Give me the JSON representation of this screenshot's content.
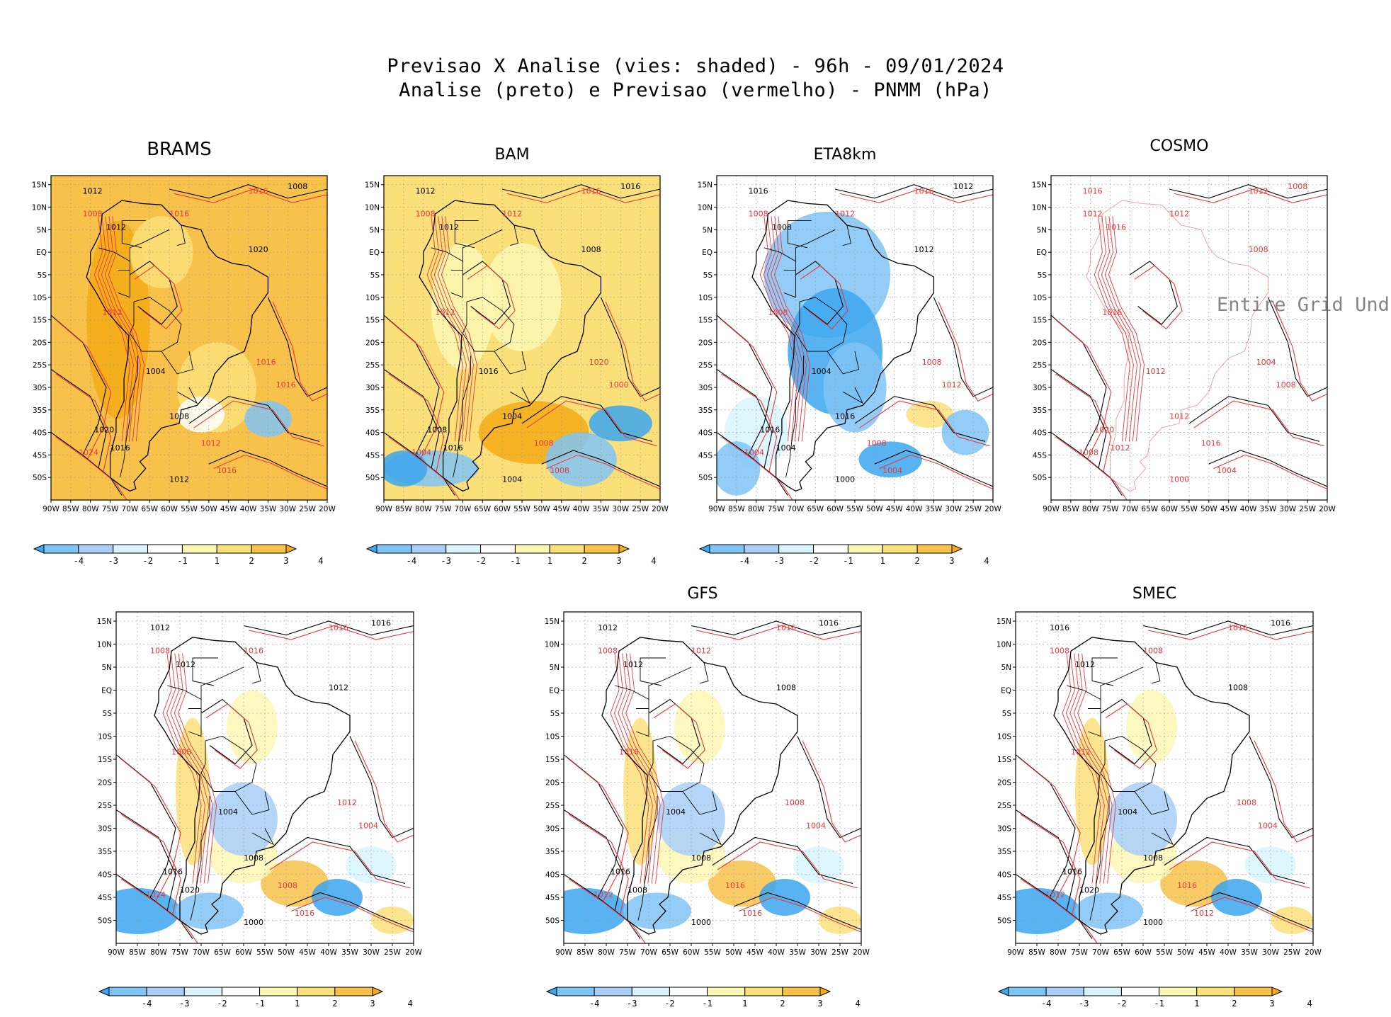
{
  "title": {
    "line1": "Previsao X Analise (vies: shaded) - 96h - 09/01/2024",
    "line2": "Analise (preto) e Previsao (vermelho) - PNMM (hPa)"
  },
  "axes": {
    "lon_labels": [
      "90W",
      "85W",
      "80W",
      "75W",
      "70W",
      "65W",
      "60W",
      "55W",
      "50W",
      "45W",
      "40W",
      "35W",
      "30W",
      "25W",
      "20W"
    ],
    "lat_labels": [
      "15N",
      "10N",
      "5N",
      "EQ",
      "5S",
      "10S",
      "15S",
      "20S",
      "25S",
      "30S",
      "35S",
      "40S",
      "45S",
      "50S"
    ]
  },
  "colorbar": {
    "labels": [
      "-4",
      "-3",
      "-2",
      "-1",
      "1",
      "2",
      "3",
      "4"
    ],
    "colors": [
      "#3aa6f0",
      "#80c4f6",
      "#a9cff8",
      "#d8f4fd",
      "#ffffff",
      "#fdf7b4",
      "#fbe07a",
      "#f8c24a",
      "#f5aa14"
    ]
  },
  "colors": {
    "analysis_contour": "#000000",
    "forecast_contour": "#e8383c"
  },
  "panels": [
    {
      "id": "brams",
      "title": "BRAMS",
      "bias": "warm",
      "no_data_text": "",
      "labels": [
        "1012",
        "1016",
        "1008",
        "1008",
        "1012",
        "1016",
        "1020",
        "1012",
        "1004",
        "1016",
        "1020",
        "1024",
        "1016",
        "1012",
        "1008",
        "1016",
        "1012",
        "1016"
      ]
    },
    {
      "id": "bam",
      "title": "BAM",
      "bias": "mixed_warm",
      "no_data_text": "",
      "labels": [
        "1012",
        "1016",
        "1016",
        "1008",
        "1012",
        "1012",
        "1008",
        "1012",
        "1016",
        "1020",
        "1008",
        "1004",
        "1016",
        "1008",
        "1004",
        "1000",
        "1004",
        "1008"
      ]
    },
    {
      "id": "eta8km",
      "title": "ETA8km",
      "bias": "cold",
      "no_data_text": "",
      "labels": [
        "1016",
        "1016",
        "1012",
        "1008",
        "1008",
        "1012",
        "1012",
        "1008",
        "1004",
        "1008",
        "1016",
        "1004",
        "1004",
        "1008",
        "1016",
        "1012",
        "1000",
        "1004"
      ]
    },
    {
      "id": "cosmo",
      "title": "COSMO",
      "bias": "none",
      "no_data_text": "Entire Grid Und",
      "labels": [
        "1016",
        "1012",
        "1008",
        "1012",
        "1016",
        "1012",
        "1008",
        "1016",
        "1012",
        "1004",
        "1020",
        "1008",
        "1012",
        "1016",
        "1012",
        "1008",
        "1000",
        "1004"
      ]
    },
    {
      "id": "panel5",
      "title": "",
      "bias": "mixed",
      "no_data_text": "",
      "labels": [
        "1012",
        "1016",
        "1016",
        "1008",
        "1012",
        "1016",
        "1012",
        "1008",
        "1004",
        "1012",
        "1016",
        "1024",
        "1020",
        "1008",
        "1008",
        "1004",
        "1000",
        "1016"
      ]
    },
    {
      "id": "gfs",
      "title": "GFS",
      "bias": "mixed",
      "no_data_text": "",
      "labels": [
        "1012",
        "1016",
        "1016",
        "1008",
        "1012",
        "1012",
        "1008",
        "1016",
        "1004",
        "1008",
        "1016",
        "1012",
        "1008",
        "1016",
        "1008",
        "1004",
        "1000",
        "1016"
      ]
    },
    {
      "id": "smec",
      "title": "SMEC",
      "bias": "mixed",
      "no_data_text": "",
      "labels": [
        "1016",
        "1016",
        "1016",
        "1008",
        "1012",
        "1008",
        "1008",
        "1012",
        "1004",
        "1008",
        "1016",
        "1012",
        "1020",
        "1016",
        "1008",
        "1004",
        "1000",
        "1012"
      ]
    }
  ]
}
